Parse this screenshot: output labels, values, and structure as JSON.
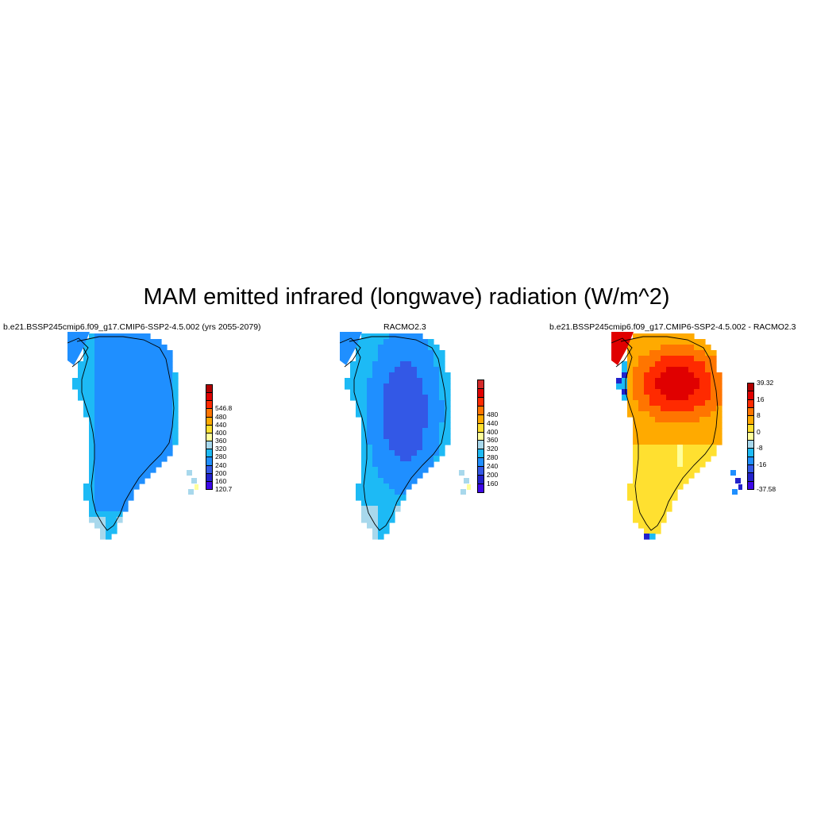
{
  "title": "MAM emitted infrared (longwave) radiation (W/m^2)",
  "panels": [
    {
      "title": "b.e21.BSSP245cmip6.f09_g17.CMIP6-SSP2-4.5.002 (yrs 2055-2079)",
      "colorbar": {
        "colors": [
          "#3e07e8",
          "#2222cc",
          "#3358e6",
          "#1f8fff",
          "#1dbaf5",
          "#a8d8ec",
          "#ffff9c",
          "#ffe030",
          "#ffaa00",
          "#ff7500",
          "#ff2a00",
          "#e00000",
          "#b00000"
        ],
        "labels": [
          "120.7",
          "160",
          "200",
          "240",
          "280",
          "320",
          "360",
          "400",
          "440",
          "480",
          "546.8"
        ],
        "label_boundaries": [
          0,
          1,
          2,
          3,
          4,
          5,
          6,
          7,
          8,
          9,
          10
        ]
      }
    },
    {
      "title": "RACMO2.3",
      "colorbar": {
        "colors": [
          "#3e07e8",
          "#2222cc",
          "#3358e6",
          "#1f8fff",
          "#1dbaf5",
          "#a8d8ec",
          "#ffff9c",
          "#ffe030",
          "#ffaa00",
          "#ff7500",
          "#ff2a00",
          "#e00000",
          "#d42a2a"
        ],
        "labels": [
          "160",
          "200",
          "240",
          "280",
          "320",
          "360",
          "400",
          "440",
          "480"
        ],
        "label_boundaries": [
          1,
          2,
          3,
          4,
          5,
          6,
          7,
          8,
          9
        ]
      }
    },
    {
      "title": "b.e21.BSSP245cmip6.f09_g17.CMIP6-SSP2-4.5.002 - RACMO2.3",
      "colorbar": {
        "colors": [
          "#3e07e8",
          "#2222cc",
          "#3358e6",
          "#1f8fff",
          "#1dbaf5",
          "#a8d8ec",
          "#ffff9c",
          "#ffe030",
          "#ffaa00",
          "#ff7500",
          "#ff2a00",
          "#e00000",
          "#b00000"
        ],
        "labels": [
          "-37.58",
          "-16",
          "-8",
          "0",
          "8",
          "16",
          "39.32"
        ],
        "label_boundaries": [
          0,
          3,
          5,
          7,
          9,
          11,
          13
        ]
      }
    }
  ]
}
